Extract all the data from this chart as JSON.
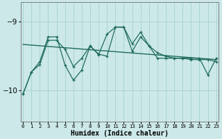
{
  "xlabel": "Humidex (Indice chaleur)",
  "background_color": "#cce8e8",
  "grid_color": "#aad4d4",
  "line_color": "#1e6b5e",
  "xlim": [
    -0.3,
    23.3
  ],
  "ylim": [
    -10.45,
    -8.72
  ],
  "yticks": [
    -10,
    -9
  ],
  "xticks": [
    0,
    1,
    2,
    3,
    4,
    5,
    6,
    7,
    8,
    9,
    10,
    11,
    12,
    13,
    14,
    15,
    16,
    17,
    18,
    19,
    20,
    21,
    22,
    23
  ],
  "line1_x": [
    0,
    1,
    2,
    3,
    4,
    5,
    6,
    7,
    8,
    9,
    10,
    11,
    12,
    13,
    14,
    15,
    16,
    17,
    18,
    19,
    20,
    21,
    22,
    23
  ],
  "line1_y": [
    -10.05,
    -9.73,
    -9.62,
    -9.27,
    -9.27,
    -9.4,
    -9.65,
    -9.53,
    -9.35,
    -9.48,
    -9.18,
    -9.08,
    -9.08,
    -9.32,
    -9.15,
    -9.35,
    -9.45,
    -9.5,
    -9.53,
    -9.53,
    -9.55,
    -9.55,
    -9.55,
    -9.58
  ],
  "line2_x": [
    0,
    1,
    2,
    3,
    4,
    5,
    6,
    7,
    8,
    9,
    10,
    11,
    12,
    13,
    14,
    15,
    16,
    17,
    18,
    19,
    20,
    21,
    22,
    23
  ],
  "line2_y": [
    -10.05,
    -9.73,
    -9.58,
    -9.22,
    -9.22,
    -9.63,
    -9.85,
    -9.7,
    -9.35,
    -9.47,
    -9.5,
    -9.08,
    -9.08,
    -9.43,
    -9.22,
    -9.35,
    -9.53,
    -9.53,
    -9.53,
    -9.53,
    -9.53,
    -9.53,
    -9.77,
    -9.53
  ],
  "trend_x": [
    0,
    23
  ],
  "trend_y": [
    -9.33,
    -9.55
  ]
}
